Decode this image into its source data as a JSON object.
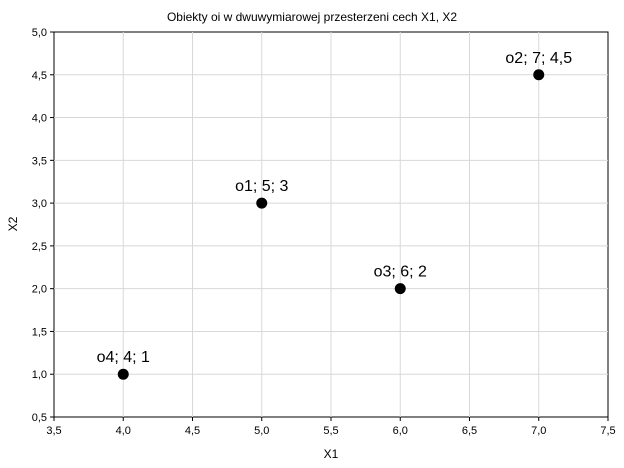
{
  "chart_data": {
    "type": "scatter",
    "title": "Obiekty oi w dwuwymiarowej przesterzeni cech X1, X2",
    "xlabel": "X1",
    "ylabel": "X2",
    "xlim": [
      3.5,
      7.5
    ],
    "ylim": [
      0.5,
      5.0
    ],
    "grid": true,
    "x_ticks": [
      3.5,
      4.0,
      4.5,
      5.0,
      5.5,
      6.0,
      6.5,
      7.0,
      7.5
    ],
    "y_ticks": [
      0.5,
      1.0,
      1.5,
      2.0,
      2.5,
      3.0,
      3.5,
      4.0,
      4.5,
      5.0
    ],
    "x_tick_labels": [
      "3,5",
      "4,0",
      "4,5",
      "5,0",
      "5,5",
      "6,0",
      "6,5",
      "7,0",
      "7,5"
    ],
    "y_tick_labels": [
      "0,5",
      "1,0",
      "1,5",
      "2,0",
      "2,5",
      "3,0",
      "3,5",
      "4,0",
      "4,5",
      "5,0"
    ],
    "point_color": "#000000",
    "points": [
      {
        "x": 5,
        "y": 3,
        "label": "o1; 5; 3"
      },
      {
        "x": 7,
        "y": 4.5,
        "label": "o2; 7; 4,5"
      },
      {
        "x": 6,
        "y": 2,
        "label": "o3; 6; 2"
      },
      {
        "x": 4,
        "y": 1,
        "label": "o4; 4; 1"
      }
    ]
  }
}
